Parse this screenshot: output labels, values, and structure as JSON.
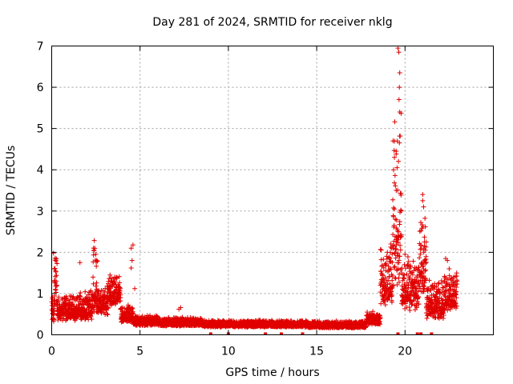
{
  "chart_data": {
    "type": "scatter",
    "title": "Day 281 of 2024, SRMTID for receiver nklg",
    "xlabel": "GPS time / hours",
    "ylabel": "SRMTID / TECUs",
    "xlim": [
      0,
      25
    ],
    "ylim": [
      0,
      7
    ],
    "xticks": [
      0,
      5,
      10,
      15,
      20
    ],
    "yticks": [
      0,
      1,
      2,
      3,
      4,
      5,
      6,
      7
    ],
    "grid": true,
    "marker": "+",
    "series": [
      {
        "name": "SRMTID",
        "color": "#e00000",
        "segments": [
          {
            "x0": 0.0,
            "x1": 0.15,
            "base": 0.55,
            "spread": 0.35
          },
          {
            "x0": 0.15,
            "x1": 0.3,
            "base": 1.2,
            "spread": 0.9
          },
          {
            "x0": 0.3,
            "x1": 1.4,
            "base": 0.55,
            "spread": 0.3
          },
          {
            "x0": 1.4,
            "x1": 2.3,
            "base": 0.6,
            "spread": 0.35
          },
          {
            "x0": 2.3,
            "x1": 2.6,
            "base": 1.1,
            "spread": 0.9
          },
          {
            "x0": 2.6,
            "x1": 3.2,
            "base": 0.7,
            "spread": 0.35
          },
          {
            "x0": 3.2,
            "x1": 3.9,
            "base": 0.95,
            "spread": 0.35
          },
          {
            "x0": 3.9,
            "x1": 4.6,
            "base": 0.45,
            "spread": 0.2
          },
          {
            "x0": 4.6,
            "x1": 6.0,
            "base": 0.3,
            "spread": 0.12
          },
          {
            "x0": 6.0,
            "x1": 8.5,
            "base": 0.28,
            "spread": 0.1
          },
          {
            "x0": 8.5,
            "x1": 14.5,
            "base": 0.24,
            "spread": 0.08
          },
          {
            "x0": 14.5,
            "x1": 17.8,
            "base": 0.22,
            "spread": 0.08
          },
          {
            "x0": 17.8,
            "x1": 18.6,
            "base": 0.35,
            "spread": 0.15
          },
          {
            "x0": 18.6,
            "x1": 19.3,
            "base": 1.2,
            "spread": 0.7
          },
          {
            "x0": 19.3,
            "x1": 19.8,
            "base": 2.5,
            "spread": 2.0
          },
          {
            "x0": 19.8,
            "x1": 20.8,
            "base": 1.0,
            "spread": 0.6
          },
          {
            "x0": 20.8,
            "x1": 21.2,
            "base": 1.6,
            "spread": 0.9
          },
          {
            "x0": 21.2,
            "x1": 22.2,
            "base": 0.7,
            "spread": 0.45
          },
          {
            "x0": 22.2,
            "x1": 22.95,
            "base": 0.9,
            "spread": 0.45
          }
        ],
        "points": [
          [
            0.1,
            1.98
          ],
          [
            0.2,
            1.86
          ],
          [
            0.15,
            1.6
          ],
          [
            0.25,
            1.3
          ],
          [
            1.6,
            1.75
          ],
          [
            2.4,
            2.05
          ],
          [
            2.5,
            1.95
          ],
          [
            2.55,
            1.8
          ],
          [
            3.3,
            1.45
          ],
          [
            3.5,
            1.35
          ],
          [
            4.5,
            2.1
          ],
          [
            4.6,
            2.18
          ],
          [
            4.55,
            1.8
          ],
          [
            4.5,
            1.62
          ],
          [
            4.7,
            1.12
          ],
          [
            7.3,
            0.66
          ],
          [
            7.2,
            0.62
          ],
          [
            19.0,
            2.0
          ],
          [
            19.2,
            2.2
          ],
          [
            19.25,
            2.1
          ],
          [
            19.5,
            4.45
          ],
          [
            19.4,
            4.3
          ],
          [
            19.35,
            4.0
          ],
          [
            19.5,
            3.5
          ],
          [
            19.45,
            2.8
          ],
          [
            19.4,
            3.05
          ],
          [
            19.55,
            4.05
          ],
          [
            19.6,
            6.95
          ],
          [
            19.65,
            6.85
          ],
          [
            19.7,
            6.35
          ],
          [
            19.68,
            6.0
          ],
          [
            19.66,
            5.7
          ],
          [
            19.7,
            5.4
          ],
          [
            19.55,
            2.35
          ],
          [
            19.6,
            2.3
          ],
          [
            20.0,
            1.95
          ],
          [
            20.15,
            1.7
          ],
          [
            21.0,
            3.4
          ],
          [
            21.0,
            3.25
          ],
          [
            21.05,
            3.1
          ],
          [
            21.1,
            2.25
          ],
          [
            21.2,
            2.25
          ],
          [
            21.15,
            2.05
          ],
          [
            22.3,
            1.85
          ],
          [
            22.4,
            1.8
          ],
          [
            22.5,
            1.6
          ]
        ],
        "zero_points": [
          9.0,
          10.0,
          12.1,
          13.0,
          14.2,
          19.6,
          20.7,
          20.9,
          21.5
        ]
      }
    ]
  }
}
